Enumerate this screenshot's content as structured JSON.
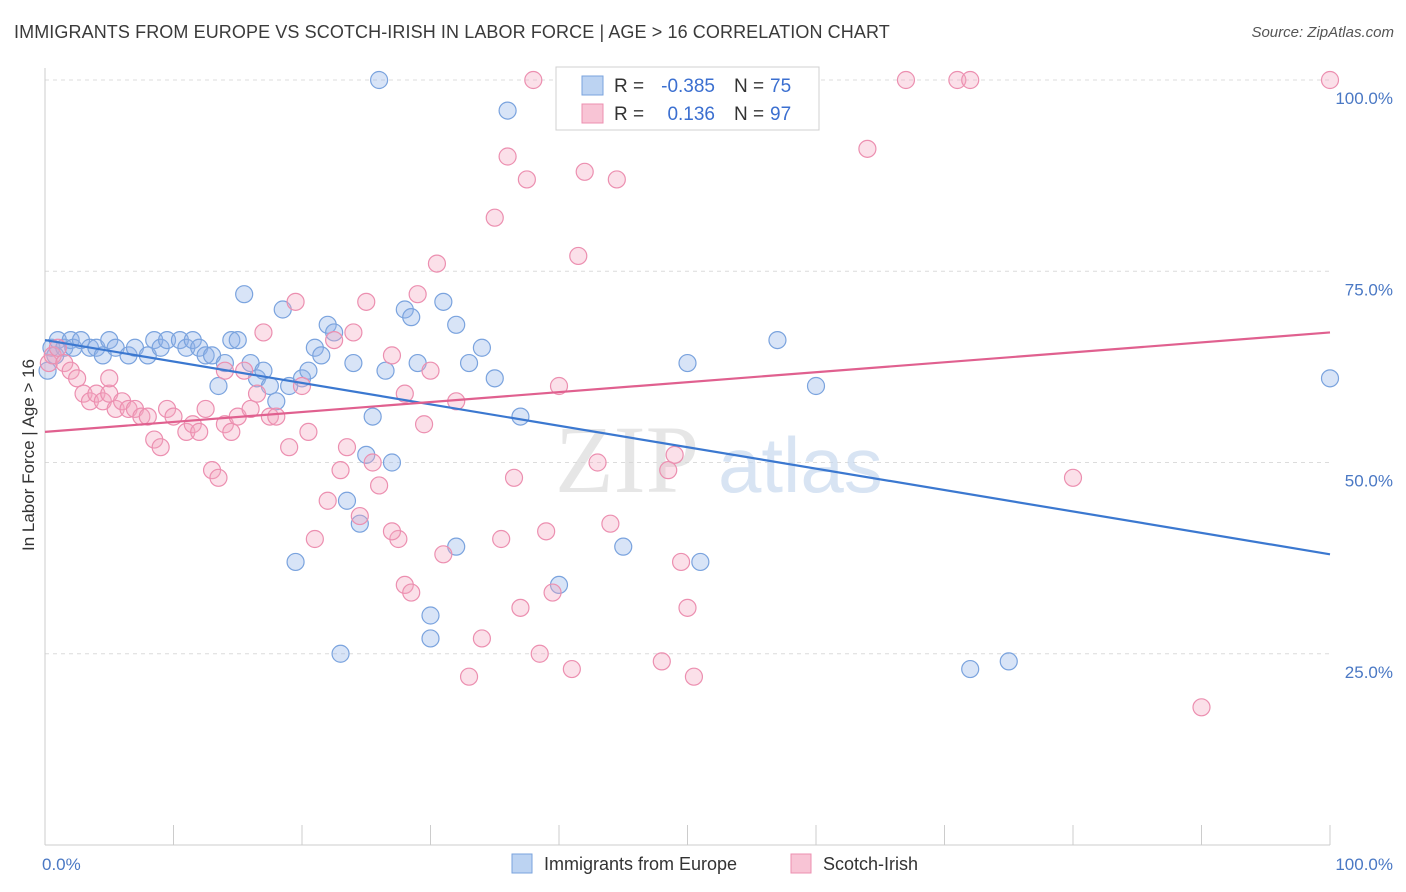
{
  "title": "IMMIGRANTS FROM EUROPE VS SCOTCH-IRISH IN LABOR FORCE | AGE > 16 CORRELATION CHART",
  "source": "Source: ZipAtlas.com",
  "watermark": {
    "zip": "ZIP",
    "atlas": "atlas"
  },
  "chart_data": {
    "type": "scatter",
    "title": "IMMIGRANTS FROM EUROPE VS SCOTCH-IRISH IN LABOR FORCE | AGE > 16 CORRELATION CHART",
    "xlabel": "",
    "ylabel": "In Labor Force | Age > 16",
    "xlim": [
      0,
      100
    ],
    "ylim": [
      0,
      100
    ],
    "x_tick_labels": [
      {
        "value": 0,
        "label": "0.0%"
      },
      {
        "value": 100,
        "label": "100.0%"
      }
    ],
    "y_tick_labels": [
      {
        "value": 25,
        "label": "25.0%"
      },
      {
        "value": 50,
        "label": "50.0%"
      },
      {
        "value": 75,
        "label": "75.0%"
      },
      {
        "value": 100,
        "label": "100.0%"
      }
    ],
    "legend_position": "top-center",
    "stats": [
      {
        "series": "Immigrants from Europe",
        "r_label": "R =",
        "r": "-0.385",
        "n_label": "N =",
        "n": "75"
      },
      {
        "series": "Scotch-Irish",
        "r_label": "R =",
        "r": "0.136",
        "n_label": "N =",
        "n": "97"
      }
    ],
    "series": [
      {
        "name": "Immigrants from Europe",
        "color": "#8fb3e8",
        "line_color": "#3b78d0",
        "trend": {
          "x": [
            0,
            100
          ],
          "y": [
            66,
            38
          ]
        },
        "points": [
          [
            0.5,
            65
          ],
          [
            0.8,
            64
          ],
          [
            1,
            66
          ],
          [
            1.5,
            65
          ],
          [
            2,
            66
          ],
          [
            2.2,
            65
          ],
          [
            2.8,
            66
          ],
          [
            3.5,
            65
          ],
          [
            4,
            65
          ],
          [
            4.5,
            64
          ],
          [
            5,
            66
          ],
          [
            5.5,
            65
          ],
          [
            6.5,
            64
          ],
          [
            7,
            65
          ],
          [
            8,
            64
          ],
          [
            8.5,
            66
          ],
          [
            9,
            65
          ],
          [
            9.5,
            66
          ],
          [
            10.5,
            66
          ],
          [
            11,
            65
          ],
          [
            11.5,
            66
          ],
          [
            12,
            65
          ],
          [
            12.5,
            64
          ],
          [
            13,
            64
          ],
          [
            13.5,
            60
          ],
          [
            14,
            63
          ],
          [
            14.5,
            66
          ],
          [
            15,
            66
          ],
          [
            15.5,
            72
          ],
          [
            16,
            63
          ],
          [
            16.5,
            61
          ],
          [
            17,
            62
          ],
          [
            17.5,
            60
          ],
          [
            18,
            58
          ],
          [
            18.5,
            70
          ],
          [
            19,
            60
          ],
          [
            19.5,
            37
          ],
          [
            20,
            61
          ],
          [
            20.5,
            62
          ],
          [
            21,
            65
          ],
          [
            21.5,
            64
          ],
          [
            22,
            68
          ],
          [
            22.5,
            67
          ],
          [
            23,
            25
          ],
          [
            23.5,
            45
          ],
          [
            24,
            63
          ],
          [
            24.5,
            42
          ],
          [
            25,
            51
          ],
          [
            25.5,
            56
          ],
          [
            26,
            100
          ],
          [
            26.5,
            62
          ],
          [
            27,
            50
          ],
          [
            28,
            70
          ],
          [
            28.5,
            69
          ],
          [
            29,
            63
          ],
          [
            30,
            30
          ],
          [
            31,
            71
          ],
          [
            32,
            68
          ],
          [
            33,
            63
          ],
          [
            34,
            65
          ],
          [
            35,
            61
          ],
          [
            36,
            96
          ],
          [
            37,
            56
          ],
          [
            40,
            34
          ],
          [
            45,
            39
          ],
          [
            50,
            63
          ],
          [
            51,
            37
          ],
          [
            57,
            66
          ],
          [
            60,
            60
          ],
          [
            72,
            23
          ],
          [
            75,
            24
          ],
          [
            100,
            61
          ],
          [
            30,
            27
          ],
          [
            32,
            39
          ],
          [
            0.2,
            62
          ]
        ]
      },
      {
        "name": "Scotch-Irish",
        "color": "#f4a6c0",
        "line_color": "#e0608f",
        "trend": {
          "x": [
            0,
            100
          ],
          "y": [
            54,
            67
          ]
        },
        "points": [
          [
            0.3,
            63
          ],
          [
            0.6,
            64
          ],
          [
            1,
            65
          ],
          [
            1.5,
            63
          ],
          [
            2,
            62
          ],
          [
            2.5,
            61
          ],
          [
            3,
            59
          ],
          [
            3.5,
            58
          ],
          [
            4,
            59
          ],
          [
            4.5,
            58
          ],
          [
            5,
            59
          ],
          [
            5.5,
            57
          ],
          [
            6,
            58
          ],
          [
            6.5,
            57
          ],
          [
            7,
            57
          ],
          [
            7.5,
            56
          ],
          [
            8,
            56
          ],
          [
            8.5,
            53
          ],
          [
            9,
            52
          ],
          [
            9.5,
            57
          ],
          [
            10,
            56
          ],
          [
            11,
            54
          ],
          [
            11.5,
            55
          ],
          [
            12,
            54
          ],
          [
            12.5,
            57
          ],
          [
            13,
            49
          ],
          [
            13.5,
            48
          ],
          [
            14,
            55
          ],
          [
            14.5,
            54
          ],
          [
            15,
            56
          ],
          [
            15.5,
            62
          ],
          [
            16,
            57
          ],
          [
            16.5,
            59
          ],
          [
            17,
            67
          ],
          [
            17.5,
            56
          ],
          [
            18,
            56
          ],
          [
            19,
            52
          ],
          [
            19.5,
            71
          ],
          [
            20,
            60
          ],
          [
            20.5,
            54
          ],
          [
            21,
            40
          ],
          [
            22,
            45
          ],
          [
            22.5,
            66
          ],
          [
            23,
            49
          ],
          [
            23.5,
            52
          ],
          [
            24,
            67
          ],
          [
            24.5,
            43
          ],
          [
            25,
            71
          ],
          [
            25.5,
            50
          ],
          [
            26,
            47
          ],
          [
            27,
            64
          ],
          [
            27.5,
            40
          ],
          [
            28,
            34
          ],
          [
            28.5,
            33
          ],
          [
            29,
            72
          ],
          [
            29.5,
            55
          ],
          [
            30,
            62
          ],
          [
            30.5,
            76
          ],
          [
            31,
            38
          ],
          [
            32,
            58
          ],
          [
            33,
            22
          ],
          [
            34,
            27
          ],
          [
            35,
            82
          ],
          [
            35.5,
            40
          ],
          [
            36,
            90
          ],
          [
            36.5,
            48
          ],
          [
            37,
            31
          ],
          [
            37.5,
            87
          ],
          [
            38,
            100
          ],
          [
            38.5,
            25
          ],
          [
            39,
            41
          ],
          [
            39.5,
            33
          ],
          [
            40,
            60
          ],
          [
            40.5,
            100
          ],
          [
            41,
            23
          ],
          [
            41.5,
            77
          ],
          [
            42,
            88
          ],
          [
            43,
            50
          ],
          [
            44,
            42
          ],
          [
            44.5,
            87
          ],
          [
            48,
            24
          ],
          [
            48.5,
            49
          ],
          [
            49,
            51
          ],
          [
            49.5,
            37
          ],
          [
            50,
            31
          ],
          [
            50.5,
            22
          ],
          [
            64,
            91
          ],
          [
            67,
            100
          ],
          [
            71,
            100
          ],
          [
            72,
            100
          ],
          [
            80,
            48
          ],
          [
            90,
            18
          ],
          [
            100,
            100
          ],
          [
            14,
            62
          ],
          [
            27,
            41
          ],
          [
            28,
            59
          ],
          [
            5,
            61
          ]
        ]
      }
    ]
  }
}
